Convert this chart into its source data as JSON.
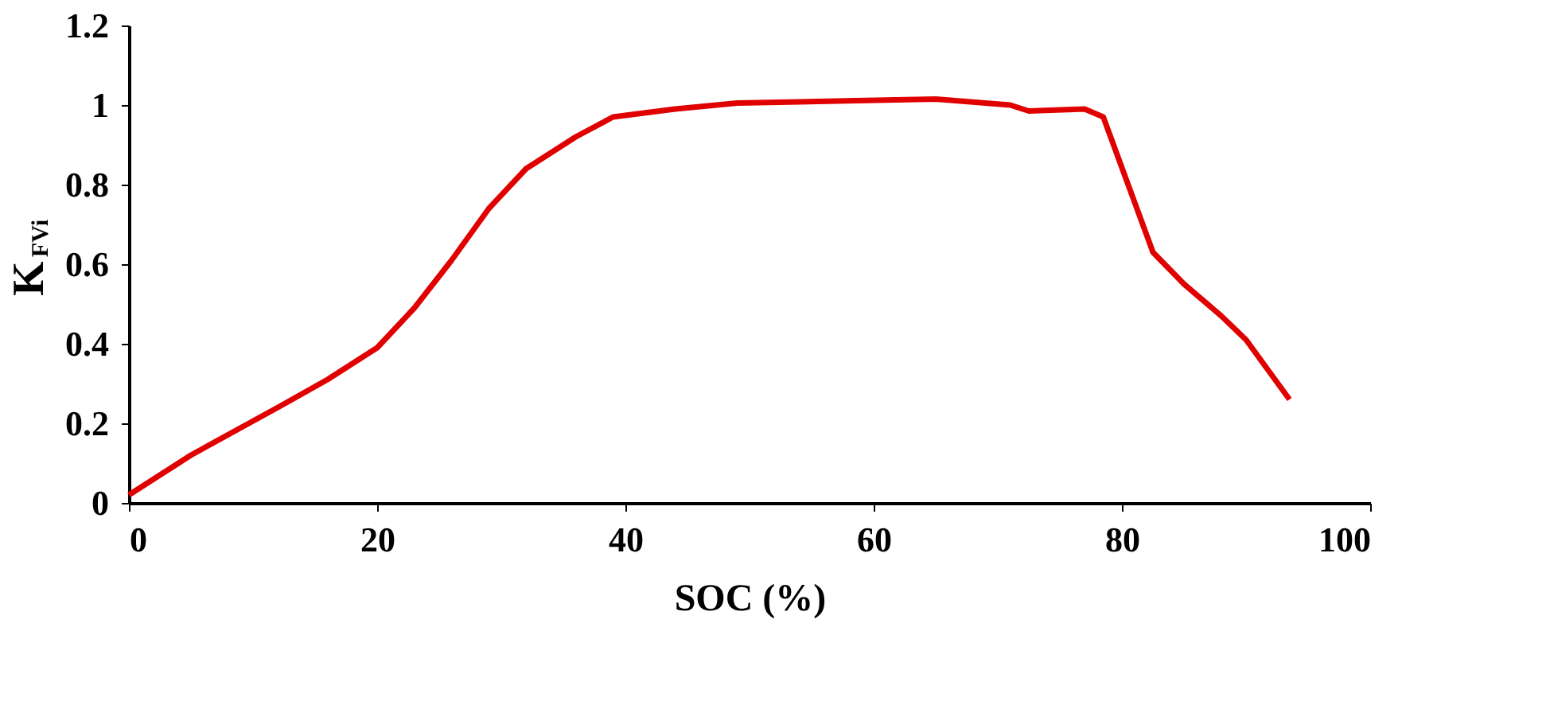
{
  "chart_data": {
    "type": "line",
    "xlabel": "SOC (%)",
    "ylabel": "K$_{FVi}$",
    "x": [
      0,
      5,
      12,
      16,
      20,
      23,
      26,
      29,
      32,
      36,
      39,
      44,
      49,
      57,
      65,
      71,
      72.5,
      77,
      78.5,
      80.5,
      82.5,
      85,
      88,
      90,
      93.5
    ],
    "series": [
      {
        "color": "#e00000",
        "values": [
          0.02,
          0.12,
          0.24,
          0.31,
          0.39,
          0.49,
          0.61,
          0.74,
          0.84,
          0.92,
          0.97,
          0.99,
          1.005,
          1.01,
          1.015,
          1.0,
          0.985,
          0.99,
          0.97,
          0.8,
          0.63,
          0.55,
          0.47,
          0.41,
          0.26
        ]
      }
    ],
    "xlim": [
      0,
      100
    ],
    "xticks": [
      0,
      20,
      40,
      60,
      80,
      100
    ],
    "ylim": [
      0,
      1.2
    ],
    "yticks": [
      0,
      0.2,
      0.4,
      0.6,
      0.8,
      1,
      1.2
    ],
    "grid": false,
    "legend": false,
    "marker": "none",
    "line_style": "solid"
  }
}
